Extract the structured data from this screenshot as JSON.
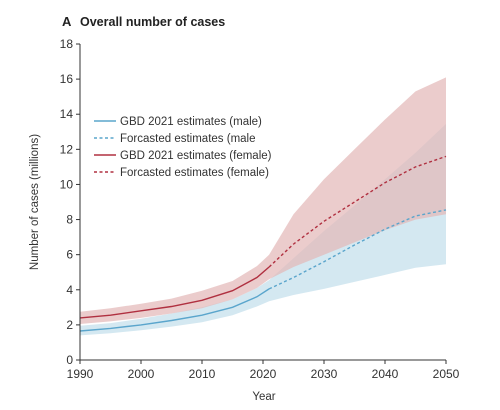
{
  "chart_data": {
    "type": "line",
    "panel_letter": "A",
    "title": "Overall number of cases",
    "xlabel": "Year",
    "ylabel": "Number of cases (millions)",
    "xlim": [
      1990,
      2050
    ],
    "ylim": [
      0,
      18
    ],
    "x_ticks": [
      1990,
      2000,
      2010,
      2020,
      2030,
      2040,
      2050
    ],
    "y_ticks": [
      0,
      2,
      4,
      6,
      8,
      10,
      12,
      14,
      16,
      18
    ],
    "grid": false,
    "legend_position": "center-left",
    "colors": {
      "male": "#5aa5cc",
      "male_band": "#cfe6f0",
      "female": "#b03040",
      "female_band": "#e3b8b8",
      "overlap_band": "#cdbdc6"
    },
    "series": [
      {
        "name": "GBD 2021 estimates (male)",
        "style": "solid",
        "x": [
          1990,
          1995,
          2000,
          2005,
          2010,
          2015,
          2019,
          2021
        ],
        "values": [
          1.65,
          1.8,
          2.0,
          2.25,
          2.55,
          3.0,
          3.6,
          4.05
        ],
        "lower": [
          1.4,
          1.52,
          1.7,
          1.9,
          2.15,
          2.55,
          3.05,
          3.35
        ],
        "upper": [
          1.95,
          2.1,
          2.35,
          2.65,
          3.0,
          3.45,
          4.1,
          4.55
        ]
      },
      {
        "name": "Forcasted estimates (male",
        "style": "dashed",
        "x": [
          2021,
          2025,
          2030,
          2035,
          2040,
          2045,
          2050
        ],
        "values": [
          4.05,
          4.7,
          5.6,
          6.55,
          7.45,
          8.2,
          8.55
        ],
        "lower": [
          3.35,
          3.7,
          4.05,
          4.45,
          4.85,
          5.25,
          5.45
        ],
        "upper": [
          4.55,
          5.8,
          7.35,
          8.8,
          10.3,
          11.8,
          13.45
        ]
      },
      {
        "name": "GBD 2021 estimates (female)",
        "style": "solid",
        "x": [
          1990,
          1995,
          2000,
          2005,
          2010,
          2015,
          2019,
          2021
        ],
        "values": [
          2.4,
          2.55,
          2.8,
          3.05,
          3.4,
          3.95,
          4.7,
          5.3
        ],
        "lower": [
          2.05,
          2.2,
          2.4,
          2.65,
          2.95,
          3.45,
          4.1,
          4.6
        ],
        "upper": [
          2.75,
          2.95,
          3.2,
          3.5,
          3.95,
          4.5,
          5.35,
          6.0
        ]
      },
      {
        "name": "Forcasted estimates (female)",
        "style": "dashed",
        "x": [
          2021,
          2025,
          2030,
          2035,
          2040,
          2045,
          2050
        ],
        "values": [
          5.3,
          6.6,
          7.9,
          9.0,
          10.1,
          11.0,
          11.6
        ],
        "lower": [
          4.6,
          5.3,
          6.0,
          6.7,
          7.4,
          8.0,
          8.3
        ],
        "upper": [
          6.0,
          8.3,
          10.3,
          12.0,
          13.7,
          15.3,
          16.1
        ]
      }
    ]
  }
}
